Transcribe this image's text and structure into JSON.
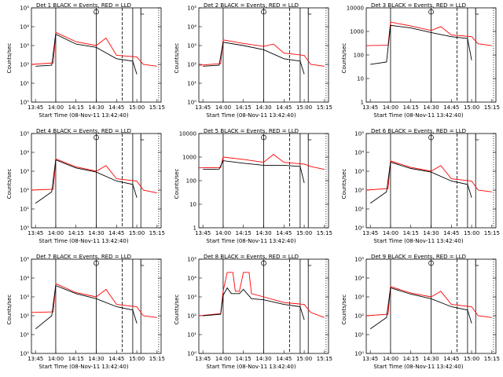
{
  "chart_data": [
    {
      "type": "line",
      "title": "Det 1 BLACK = Events, RED = LLD",
      "xlabel": "Start Time (08-Nov-11 13:42:40)",
      "ylabel": "Counts/sec",
      "scale": "log",
      "yticks": [
        "10⁰",
        "10¹",
        "10²",
        "10³",
        "10⁴",
        "10⁵"
      ],
      "ylim": [
        1,
        100000
      ],
      "xticks": [
        "13:45",
        "14:00",
        "14:15",
        "14:30",
        "14:45",
        "15:00",
        "15:15"
      ],
      "series": [
        {
          "name": "Events",
          "color": "#000000",
          "points": [
            [
              13.75,
              80
            ],
            [
              13.95,
              90
            ],
            [
              14.0,
              4000
            ],
            [
              14.25,
              1200
            ],
            [
              14.5,
              800
            ],
            [
              14.75,
              200
            ],
            [
              14.95,
              150
            ],
            [
              15.0,
              30
            ]
          ]
        },
        {
          "name": "LLD",
          "color": "#ff0000",
          "points": [
            [
              13.7,
              100
            ],
            [
              13.97,
              120
            ],
            [
              14.0,
              5000
            ],
            [
              14.25,
              1600
            ],
            [
              14.5,
              1000
            ],
            [
              14.62,
              2500
            ],
            [
              14.75,
              300
            ],
            [
              15.0,
              250
            ],
            [
              15.08,
              100
            ],
            [
              15.25,
              80
            ]
          ]
        }
      ]
    },
    {
      "type": "line",
      "title": "Det 2 BLACK = Events, RED = LLD",
      "xlabel": "Start Time (08-Nov-11 13:42:40)",
      "ylabel": "Counts/sec",
      "scale": "log",
      "yticks": [
        "10⁰",
        "10¹",
        "10²",
        "10³",
        "10⁴",
        "10⁵"
      ],
      "ylim": [
        1,
        100000
      ],
      "xticks": [
        "13:45",
        "14:00",
        "14:15",
        "14:30",
        "14:45",
        "15:00",
        "15:15"
      ],
      "series": [
        {
          "name": "Events",
          "color": "#000000",
          "points": [
            [
              13.75,
              80
            ],
            [
              13.95,
              90
            ],
            [
              14.0,
              1500
            ],
            [
              14.25,
              1000
            ],
            [
              14.5,
              600
            ],
            [
              14.75,
              200
            ],
            [
              14.95,
              150
            ],
            [
              15.0,
              30
            ]
          ]
        },
        {
          "name": "LLD",
          "color": "#ff0000",
          "points": [
            [
              13.7,
              90
            ],
            [
              13.97,
              110
            ],
            [
              14.0,
              2000
            ],
            [
              14.25,
              1300
            ],
            [
              14.5,
              900
            ],
            [
              14.62,
              1200
            ],
            [
              14.75,
              400
            ],
            [
              15.0,
              300
            ],
            [
              15.08,
              100
            ],
            [
              15.25,
              80
            ]
          ]
        }
      ]
    },
    {
      "type": "line",
      "title": "Det 3 BLACK = Events, RED = LLD",
      "xlabel": "Start Time (08-Nov-11 13:42:40)",
      "ylabel": "Counts/sec",
      "scale": "log",
      "yticks": [
        "1",
        "10",
        "100",
        "1000",
        "10000"
      ],
      "ylim": [
        1,
        10000
      ],
      "xticks": [
        "13:45",
        "14:00",
        "14:15",
        "14:30",
        "14:45",
        "15:00",
        "15:15"
      ],
      "series": [
        {
          "name": "Events",
          "color": "#000000",
          "points": [
            [
              13.75,
              40
            ],
            [
              13.95,
              50
            ],
            [
              14.0,
              1800
            ],
            [
              14.25,
              1400
            ],
            [
              14.5,
              900
            ],
            [
              14.75,
              600
            ],
            [
              14.95,
              500
            ],
            [
              15.0,
              60
            ]
          ]
        },
        {
          "name": "LLD",
          "color": "#ff0000",
          "points": [
            [
              13.7,
              250
            ],
            [
              13.97,
              260
            ],
            [
              14.0,
              2500
            ],
            [
              14.25,
              1700
            ],
            [
              14.5,
              1100
            ],
            [
              14.62,
              1600
            ],
            [
              14.75,
              700
            ],
            [
              15.0,
              600
            ],
            [
              15.08,
              300
            ],
            [
              15.25,
              250
            ]
          ]
        }
      ]
    },
    {
      "type": "line",
      "title": "Det 4 BLACK = Events, RED = LLD",
      "xlabel": "Start Time (08-Nov-11 13:42:40)",
      "ylabel": "Counts/sec",
      "scale": "log",
      "yticks": [
        "10⁰",
        "10¹",
        "10²",
        "10³",
        "10⁴",
        "10⁵"
      ],
      "ylim": [
        1,
        100000
      ],
      "xticks": [
        "13:45",
        "14:00",
        "14:15",
        "14:30",
        "14:45",
        "15:00",
        "15:15"
      ],
      "series": [
        {
          "name": "Events",
          "color": "#000000",
          "points": [
            [
              13.75,
              20
            ],
            [
              13.95,
              80
            ],
            [
              14.0,
              4000
            ],
            [
              14.25,
              1500
            ],
            [
              14.5,
              900
            ],
            [
              14.75,
              300
            ],
            [
              14.95,
              200
            ],
            [
              15.0,
              40
            ]
          ]
        },
        {
          "name": "LLD",
          "color": "#ff0000",
          "points": [
            [
              13.7,
              100
            ],
            [
              13.97,
              110
            ],
            [
              14.0,
              4500
            ],
            [
              14.25,
              1700
            ],
            [
              14.5,
              1000
            ],
            [
              14.62,
              2000
            ],
            [
              14.75,
              400
            ],
            [
              15.0,
              300
            ],
            [
              15.08,
              100
            ],
            [
              15.25,
              70
            ]
          ]
        }
      ]
    },
    {
      "type": "line",
      "title": "Det 5 BLACK = Events, RED = LLD",
      "xlabel": "Start Time (08-Nov-11 13:42:40)",
      "ylabel": "Counts/sec",
      "scale": "log",
      "yticks": [
        "1",
        "10",
        "100",
        "1000",
        "10000"
      ],
      "ylim": [
        1,
        10000
      ],
      "xticks": [
        "13:45",
        "14:00",
        "14:15",
        "14:30",
        "14:45",
        "15:00",
        "15:15"
      ],
      "series": [
        {
          "name": "Events",
          "color": "#000000",
          "points": [
            [
              13.75,
              300
            ],
            [
              13.95,
              310
            ],
            [
              14.0,
              700
            ],
            [
              14.25,
              550
            ],
            [
              14.5,
              450
            ],
            [
              14.75,
              450
            ],
            [
              14.95,
              400
            ],
            [
              15.0,
              80
            ]
          ]
        },
        {
          "name": "LLD",
          "color": "#ff0000",
          "points": [
            [
              13.7,
              350
            ],
            [
              13.97,
              360
            ],
            [
              14.0,
              1000
            ],
            [
              14.25,
              800
            ],
            [
              14.5,
              600
            ],
            [
              14.62,
              1300
            ],
            [
              14.75,
              600
            ],
            [
              15.0,
              500
            ],
            [
              15.08,
              400
            ],
            [
              15.25,
              300
            ]
          ]
        }
      ]
    },
    {
      "type": "line",
      "title": "Det 6 BLACK = Events, RED = LLD",
      "xlabel": "Start Time (08-Nov-11 13:42:40)",
      "ylabel": "Counts/sec",
      "scale": "log",
      "yticks": [
        "10⁰",
        "10¹",
        "10²",
        "10³",
        "10⁴",
        "10⁵"
      ],
      "ylim": [
        1,
        100000
      ],
      "xticks": [
        "13:45",
        "14:00",
        "14:15",
        "14:30",
        "14:45",
        "15:00",
        "15:15"
      ],
      "series": [
        {
          "name": "Events",
          "color": "#000000",
          "points": [
            [
              13.75,
              20
            ],
            [
              13.95,
              80
            ],
            [
              14.0,
              3000
            ],
            [
              14.25,
              1400
            ],
            [
              14.5,
              900
            ],
            [
              14.75,
              300
            ],
            [
              14.95,
              200
            ],
            [
              15.0,
              40
            ]
          ]
        },
        {
          "name": "LLD",
          "color": "#ff0000",
          "points": [
            [
              13.7,
              100
            ],
            [
              13.97,
              120
            ],
            [
              14.0,
              3500
            ],
            [
              14.25,
              1600
            ],
            [
              14.5,
              1000
            ],
            [
              14.62,
              2000
            ],
            [
              14.75,
              400
            ],
            [
              15.0,
              300
            ],
            [
              15.08,
              100
            ],
            [
              15.25,
              80
            ]
          ]
        }
      ]
    },
    {
      "type": "line",
      "title": "Det 7 BLACK = Events, RED = LLD",
      "xlabel": "Start Time (08-Nov-11 13:42:40)",
      "ylabel": "Counts/sec",
      "scale": "log",
      "yticks": [
        "10⁰",
        "10¹",
        "10²",
        "10³",
        "10⁴",
        "10⁵"
      ],
      "ylim": [
        1,
        100000
      ],
      "xticks": [
        "13:45",
        "14:00",
        "14:15",
        "14:30",
        "14:45",
        "15:00",
        "15:15"
      ],
      "series": [
        {
          "name": "Events",
          "color": "#000000",
          "points": [
            [
              13.75,
              20
            ],
            [
              13.95,
              100
            ],
            [
              14.0,
              4000
            ],
            [
              14.25,
              1500
            ],
            [
              14.5,
              800
            ],
            [
              14.75,
              300
            ],
            [
              14.95,
              200
            ],
            [
              15.0,
              40
            ]
          ]
        },
        {
          "name": "LLD",
          "color": "#ff0000",
          "points": [
            [
              13.7,
              150
            ],
            [
              13.97,
              160
            ],
            [
              14.0,
              5000
            ],
            [
              14.25,
              1700
            ],
            [
              14.5,
              1000
            ],
            [
              14.62,
              2500
            ],
            [
              14.75,
              400
            ],
            [
              15.0,
              300
            ],
            [
              15.08,
              100
            ],
            [
              15.25,
              80
            ]
          ]
        }
      ]
    },
    {
      "type": "line",
      "title": "Det 8 BLACK = Events, RED = LLD",
      "xlabel": "Start Time (08-Nov-11 13:42:40)",
      "ylabel": "Counts/sec",
      "scale": "log",
      "yticks": [
        "10⁰",
        "10¹",
        "10²",
        "10³",
        "10⁴",
        "10⁵"
      ],
      "ylim": [
        1,
        100000
      ],
      "xticks": [
        "13:45",
        "14:00",
        "14:15",
        "14:30",
        "14:45",
        "15:00",
        "15:15"
      ],
      "series": [
        {
          "name": "Events",
          "color": "#000000",
          "points": [
            [
              13.75,
              100
            ],
            [
              13.97,
              120
            ],
            [
              14.0,
              1200
            ],
            [
              14.05,
              3000
            ],
            [
              14.1,
              1500
            ],
            [
              14.2,
              1500
            ],
            [
              14.25,
              2500
            ],
            [
              14.35,
              800
            ],
            [
              14.5,
              700
            ],
            [
              14.75,
              400
            ],
            [
              14.95,
              300
            ],
            [
              15.0,
              60
            ]
          ]
        },
        {
          "name": "LLD",
          "color": "#ff0000",
          "points": [
            [
              13.7,
              100
            ],
            [
              13.97,
              130
            ],
            [
              14.0,
              2000
            ],
            [
              14.05,
              20000
            ],
            [
              14.12,
              20000
            ],
            [
              14.15,
              2000
            ],
            [
              14.2,
              2000
            ],
            [
              14.25,
              20000
            ],
            [
              14.32,
              20000
            ],
            [
              14.35,
              1500
            ],
            [
              14.5,
              1000
            ],
            [
              14.75,
              500
            ],
            [
              15.0,
              400
            ],
            [
              15.08,
              150
            ],
            [
              15.25,
              80
            ]
          ]
        }
      ]
    },
    {
      "type": "line",
      "title": "Det 9 BLACK = Events, RED = LLD",
      "xlabel": "Start Time (08-Nov-11 13:42:40)",
      "ylabel": "Counts/sec",
      "scale": "log",
      "yticks": [
        "10⁰",
        "10¹",
        "10²",
        "10³",
        "10⁴",
        "10⁵"
      ],
      "ylim": [
        1,
        100000
      ],
      "xticks": [
        "13:45",
        "14:00",
        "14:15",
        "14:30",
        "14:45",
        "15:00",
        "15:15"
      ],
      "series": [
        {
          "name": "Events",
          "color": "#000000",
          "points": [
            [
              13.75,
              20
            ],
            [
              13.95,
              80
            ],
            [
              14.0,
              3000
            ],
            [
              14.25,
              1400
            ],
            [
              14.5,
              800
            ],
            [
              14.75,
              300
            ],
            [
              14.95,
              200
            ],
            [
              15.0,
              40
            ]
          ]
        },
        {
          "name": "LLD",
          "color": "#ff0000",
          "points": [
            [
              13.7,
              100
            ],
            [
              13.97,
              120
            ],
            [
              14.0,
              3500
            ],
            [
              14.25,
              1600
            ],
            [
              14.5,
              1000
            ],
            [
              14.62,
              2000
            ],
            [
              14.75,
              400
            ],
            [
              15.0,
              300
            ],
            [
              15.08,
              100
            ],
            [
              15.25,
              80
            ]
          ]
        }
      ]
    }
  ],
  "vlines": {
    "solid": [
      14.0,
      14.5,
      14.95,
      15.05
    ],
    "dashed": [
      14.82
    ],
    "dotted": [
      15.27
    ]
  },
  "markers": {
    "circle": 14.5,
    "flag": 15.05
  }
}
